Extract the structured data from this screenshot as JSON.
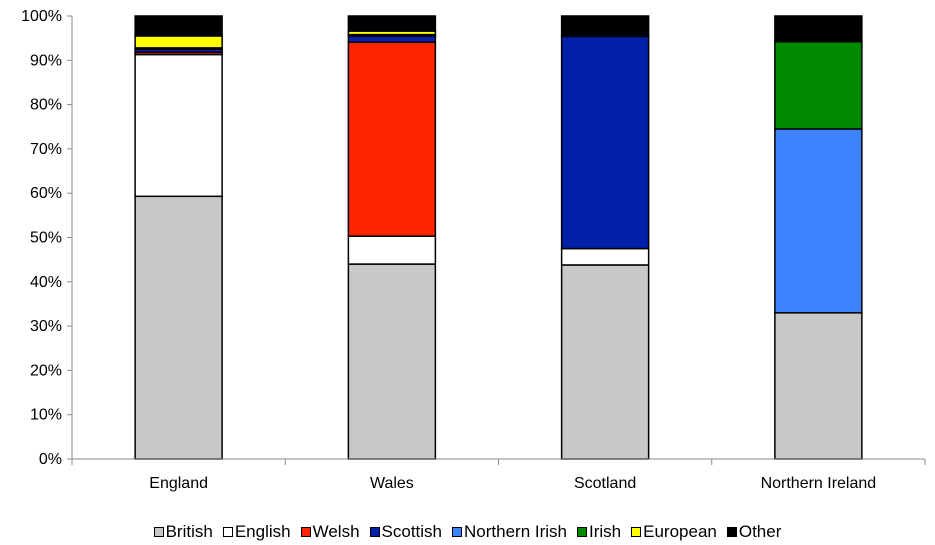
{
  "chart_data": {
    "type": "bar",
    "stacked": true,
    "categories": [
      "England",
      "Wales",
      "Scotland",
      "Northern Ireland"
    ],
    "series": [
      {
        "name": "British",
        "color": "#c8c8c8",
        "values": [
          59.3,
          44.0,
          43.8,
          33.0
        ]
      },
      {
        "name": "English",
        "color": "#ffffff",
        "values": [
          32.0,
          6.3,
          3.7,
          0.0
        ]
      },
      {
        "name": "Welsh",
        "color": "#ff2400",
        "values": [
          0.5,
          43.8,
          0.0,
          0.0
        ]
      },
      {
        "name": "Scottish",
        "color": "#0020a8",
        "values": [
          0.7,
          1.4,
          47.9,
          0.0
        ]
      },
      {
        "name": "Northern Irish",
        "color": "#3d82ff",
        "values": [
          0.0,
          0.0,
          0.0,
          41.5
        ]
      },
      {
        "name": "Irish",
        "color": "#008a00",
        "values": [
          0.3,
          0.3,
          0.2,
          19.7
        ]
      },
      {
        "name": "European",
        "color": "#ffff00",
        "values": [
          2.7,
          0.8,
          0.0,
          0.0
        ]
      },
      {
        "name": "Other",
        "color": "#000000",
        "values": [
          4.5,
          3.4,
          4.4,
          5.8
        ]
      }
    ],
    "ylim": [
      0,
      100
    ],
    "yticks": [
      "0%",
      "10%",
      "20%",
      "30%",
      "40%",
      "50%",
      "60%",
      "70%",
      "80%",
      "90%",
      "100%"
    ],
    "xlabel": "",
    "ylabel": "",
    "title": "",
    "grid": false,
    "legend_position": "bottom"
  }
}
